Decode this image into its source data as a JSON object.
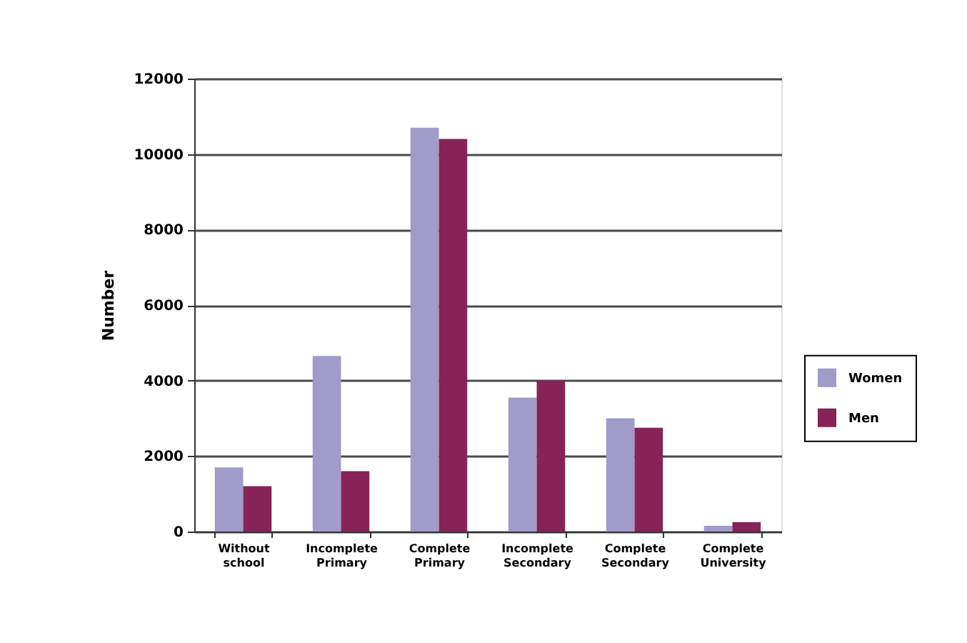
{
  "chart_data": {
    "type": "bar",
    "ylabel": "Number",
    "categories": [
      "Without school",
      "Incomplete Primary",
      "Complete Primary",
      "Incomplete Secondary",
      "Complete Secondary",
      "Complete University"
    ],
    "series": [
      {
        "name": "Women",
        "color": "#a09bc8",
        "values": [
          1700,
          4650,
          10700,
          3550,
          3000,
          150
        ]
      },
      {
        "name": "Men",
        "color": "#862358",
        "values": [
          1200,
          1600,
          10400,
          4000,
          2750,
          250
        ]
      }
    ],
    "ylim": [
      0,
      12000
    ],
    "yticks": [
      0,
      2000,
      4000,
      6000,
      8000,
      10000,
      12000
    ],
    "grid": "y",
    "legend": "right"
  }
}
